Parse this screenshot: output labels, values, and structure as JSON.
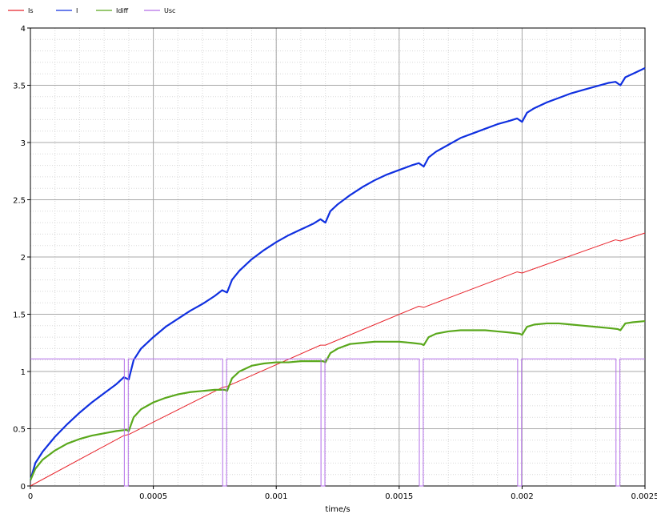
{
  "chart_data": {
    "type": "line",
    "xlabel": "time/s",
    "ylabel": "",
    "xlim": [
      0,
      0.0025
    ],
    "ylim": [
      0,
      4
    ],
    "x_ticks": [
      {
        "value": 0,
        "label": "0"
      },
      {
        "value": 0.0005,
        "label": "0.0005"
      },
      {
        "value": 0.001,
        "label": "0.001"
      },
      {
        "value": 0.0015,
        "label": "0.0015"
      },
      {
        "value": 0.002,
        "label": "0.002"
      },
      {
        "value": 0.0025,
        "label": "0.0025"
      }
    ],
    "y_ticks": [
      {
        "value": 0,
        "label": "0"
      },
      {
        "value": 0.5,
        "label": "0.5"
      },
      {
        "value": 1,
        "label": "1"
      },
      {
        "value": 1.5,
        "label": "1.5"
      },
      {
        "value": 2,
        "label": "2"
      },
      {
        "value": 2.5,
        "label": "2.5"
      },
      {
        "value": 3,
        "label": "3"
      },
      {
        "value": 3.5,
        "label": "3.5"
      },
      {
        "value": 4,
        "label": "4"
      }
    ],
    "grid": true,
    "minor_grid": true,
    "legend": {
      "position": "top-left"
    },
    "series": [
      {
        "name": "Is",
        "color": "#e8242c",
        "points": [
          [
            0,
            0
          ],
          [
            0.00038,
            0.44
          ],
          [
            0.0004,
            0.45
          ],
          [
            0.0004,
            0.45
          ],
          [
            0.00078,
            0.86
          ],
          [
            0.0008,
            0.87
          ],
          [
            0.00118,
            1.23
          ],
          [
            0.0012,
            1.23
          ],
          [
            0.00158,
            1.57
          ],
          [
            0.0016,
            1.56
          ],
          [
            0.00198,
            1.87
          ],
          [
            0.002,
            1.86
          ],
          [
            0.00238,
            2.15
          ],
          [
            0.0024,
            2.14
          ],
          [
            0.0025,
            2.21
          ]
        ]
      },
      {
        "name": "I",
        "color": "#1030e0",
        "points": [
          [
            0,
            0.05
          ],
          [
            2e-05,
            0.2
          ],
          [
            5e-05,
            0.3
          ],
          [
            0.0001,
            0.43
          ],
          [
            0.00015,
            0.54
          ],
          [
            0.0002,
            0.64
          ],
          [
            0.00025,
            0.73
          ],
          [
            0.0003,
            0.81
          ],
          [
            0.00035,
            0.89
          ],
          [
            0.00038,
            0.95
          ],
          [
            0.0004,
            0.93
          ],
          [
            0.00042,
            1.1
          ],
          [
            0.00045,
            1.2
          ],
          [
            0.0005,
            1.3
          ],
          [
            0.00055,
            1.39
          ],
          [
            0.0006,
            1.46
          ],
          [
            0.00065,
            1.53
          ],
          [
            0.0007,
            1.59
          ],
          [
            0.00075,
            1.66
          ],
          [
            0.00078,
            1.71
          ],
          [
            0.0008,
            1.69
          ],
          [
            0.00082,
            1.8
          ],
          [
            0.00085,
            1.88
          ],
          [
            0.0009,
            1.98
          ],
          [
            0.00095,
            2.06
          ],
          [
            0.001,
            2.13
          ],
          [
            0.00105,
            2.19
          ],
          [
            0.0011,
            2.24
          ],
          [
            0.00115,
            2.29
          ],
          [
            0.00118,
            2.33
          ],
          [
            0.0012,
            2.3
          ],
          [
            0.00122,
            2.4
          ],
          [
            0.00125,
            2.46
          ],
          [
            0.0013,
            2.54
          ],
          [
            0.00135,
            2.61
          ],
          [
            0.0014,
            2.67
          ],
          [
            0.00145,
            2.72
          ],
          [
            0.0015,
            2.76
          ],
          [
            0.00155,
            2.8
          ],
          [
            0.00158,
            2.82
          ],
          [
            0.0016,
            2.79
          ],
          [
            0.00162,
            2.87
          ],
          [
            0.00165,
            2.92
          ],
          [
            0.0017,
            2.98
          ],
          [
            0.00175,
            3.04
          ],
          [
            0.0018,
            3.08
          ],
          [
            0.00185,
            3.12
          ],
          [
            0.0019,
            3.16
          ],
          [
            0.00195,
            3.19
          ],
          [
            0.00198,
            3.21
          ],
          [
            0.002,
            3.18
          ],
          [
            0.00202,
            3.26
          ],
          [
            0.00205,
            3.3
          ],
          [
            0.0021,
            3.35
          ],
          [
            0.00215,
            3.39
          ],
          [
            0.0022,
            3.43
          ],
          [
            0.00225,
            3.46
          ],
          [
            0.0023,
            3.49
          ],
          [
            0.00235,
            3.52
          ],
          [
            0.00238,
            3.53
          ],
          [
            0.0024,
            3.5
          ],
          [
            0.00242,
            3.57
          ],
          [
            0.00245,
            3.6
          ],
          [
            0.0025,
            3.65
          ]
        ]
      },
      {
        "name": "Idiff",
        "color": "#5aa81c",
        "points": [
          [
            0,
            0.05
          ],
          [
            2e-05,
            0.15
          ],
          [
            5e-05,
            0.23
          ],
          [
            0.0001,
            0.31
          ],
          [
            0.00015,
            0.37
          ],
          [
            0.0002,
            0.41
          ],
          [
            0.00025,
            0.44
          ],
          [
            0.0003,
            0.46
          ],
          [
            0.00035,
            0.48
          ],
          [
            0.00039,
            0.49
          ],
          [
            0.0004,
            0.48
          ],
          [
            0.00042,
            0.6
          ],
          [
            0.00045,
            0.67
          ],
          [
            0.0005,
            0.73
          ],
          [
            0.00055,
            0.77
          ],
          [
            0.0006,
            0.8
          ],
          [
            0.00065,
            0.82
          ],
          [
            0.0007,
            0.83
          ],
          [
            0.00075,
            0.84
          ],
          [
            0.00079,
            0.84
          ],
          [
            0.0008,
            0.83
          ],
          [
            0.00082,
            0.94
          ],
          [
            0.00085,
            1.0
          ],
          [
            0.0009,
            1.05
          ],
          [
            0.00095,
            1.07
          ],
          [
            0.001,
            1.08
          ],
          [
            0.00105,
            1.08
          ],
          [
            0.0011,
            1.09
          ],
          [
            0.00115,
            1.09
          ],
          [
            0.00119,
            1.09
          ],
          [
            0.0012,
            1.08
          ],
          [
            0.00122,
            1.16
          ],
          [
            0.00125,
            1.2
          ],
          [
            0.0013,
            1.24
          ],
          [
            0.00135,
            1.25
          ],
          [
            0.0014,
            1.26
          ],
          [
            0.00145,
            1.26
          ],
          [
            0.0015,
            1.26
          ],
          [
            0.00155,
            1.25
          ],
          [
            0.00159,
            1.24
          ],
          [
            0.0016,
            1.23
          ],
          [
            0.00162,
            1.3
          ],
          [
            0.00165,
            1.33
          ],
          [
            0.0017,
            1.35
          ],
          [
            0.00175,
            1.36
          ],
          [
            0.0018,
            1.36
          ],
          [
            0.00185,
            1.36
          ],
          [
            0.0019,
            1.35
          ],
          [
            0.00195,
            1.34
          ],
          [
            0.00199,
            1.33
          ],
          [
            0.002,
            1.32
          ],
          [
            0.00202,
            1.39
          ],
          [
            0.00205,
            1.41
          ],
          [
            0.0021,
            1.42
          ],
          [
            0.00215,
            1.42
          ],
          [
            0.0022,
            1.41
          ],
          [
            0.00225,
            1.4
          ],
          [
            0.0023,
            1.39
          ],
          [
            0.00235,
            1.38
          ],
          [
            0.00239,
            1.37
          ],
          [
            0.0024,
            1.36
          ],
          [
            0.00242,
            1.42
          ],
          [
            0.00245,
            1.43
          ],
          [
            0.0025,
            1.44
          ]
        ]
      },
      {
        "name": "Usc",
        "color": "#b36ee8",
        "points": [
          [
            0,
            1.11
          ],
          [
            0.000382,
            1.11
          ],
          [
            0.000382,
            0
          ],
          [
            0.000398,
            0
          ],
          [
            0.000398,
            1.11
          ],
          [
            0.000782,
            1.11
          ],
          [
            0.000782,
            0
          ],
          [
            0.000798,
            0
          ],
          [
            0.000798,
            1.11
          ],
          [
            0.001182,
            1.11
          ],
          [
            0.001182,
            0
          ],
          [
            0.001198,
            0
          ],
          [
            0.001198,
            1.11
          ],
          [
            0.001582,
            1.11
          ],
          [
            0.001582,
            0
          ],
          [
            0.001598,
            0
          ],
          [
            0.001598,
            1.11
          ],
          [
            0.001982,
            1.11
          ],
          [
            0.001982,
            0
          ],
          [
            0.001998,
            0
          ],
          [
            0.001998,
            1.11
          ],
          [
            0.002382,
            1.11
          ],
          [
            0.002382,
            0
          ],
          [
            0.002398,
            0
          ],
          [
            0.002398,
            1.11
          ],
          [
            0.0025,
            1.11
          ]
        ]
      }
    ]
  }
}
